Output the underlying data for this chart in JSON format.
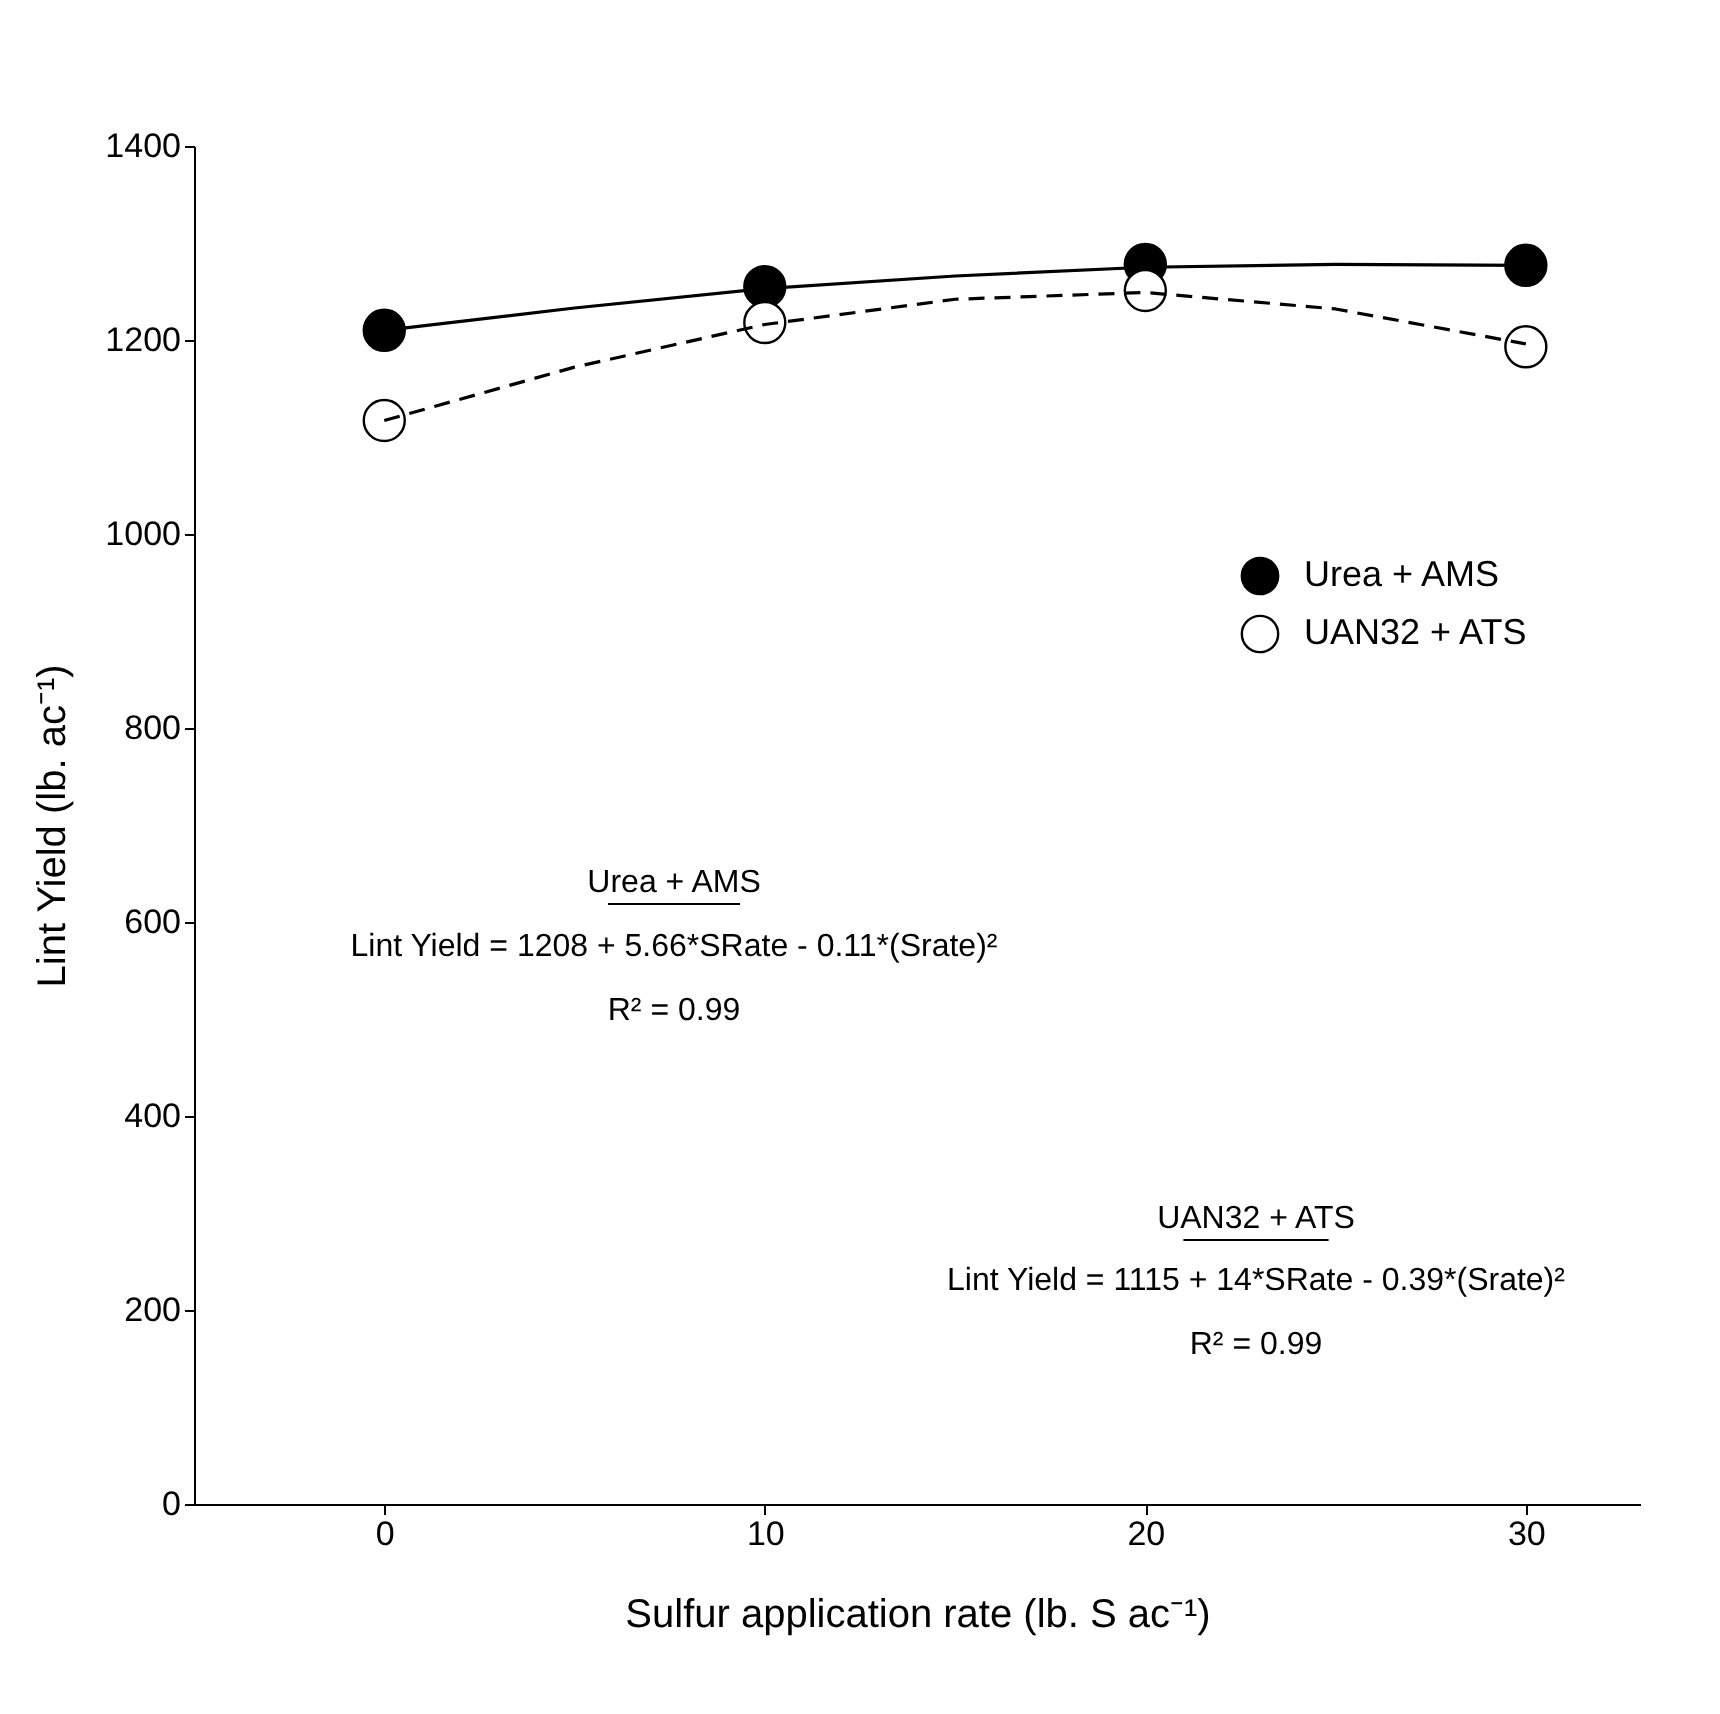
{
  "chart_data": {
    "type": "scatter",
    "xlabel": "Sulfur application rate (lb. S ac⁻¹)",
    "ylabel": "Lint Yield (lb. ac⁻¹)",
    "x": [
      0,
      10,
      20,
      30
    ],
    "xlim": [
      -5,
      33
    ],
    "xticks": [
      0,
      10,
      20,
      30
    ],
    "ylim": [
      0,
      1400
    ],
    "yticks": [
      0,
      200,
      400,
      600,
      800,
      1000,
      1200,
      1400
    ],
    "grid": false,
    "legend": "right",
    "series": [
      {
        "name": "Urea + AMS",
        "color": "#000000",
        "marker": "circle",
        "values": [
          1210,
          1255,
          1278,
          1277
        ]
      },
      {
        "name": "UAN32 + ATS",
        "color": "#ffffff",
        "marker": "circle",
        "values": [
          1117,
          1218,
          1251,
          1193
        ]
      },
      {
        "type": "line",
        "color": "#000000",
        "line_style": "solid",
        "x": [
          0,
          5,
          10,
          15,
          20,
          25,
          30
        ],
        "values": [
          1210,
          1233,
          1253,
          1266,
          1275,
          1278,
          1277
        ]
      },
      {
        "type": "line",
        "color": "#000000",
        "line_style": "dashed",
        "x": [
          0,
          5,
          10,
          15,
          20,
          25,
          30
        ],
        "values": [
          1117,
          1172,
          1216,
          1242,
          1249,
          1232,
          1196
        ]
      }
    ],
    "annotations": [
      "Urea + AMS",
      "Lint Yield = 1208 + 5.66*SRate - 0.11*(Srate)²",
      "R² = 0.99",
      "UAN32 + ATS",
      "Lint Yield = 1115 + 14*SRate - 0.39*(Srate)²",
      "R² = 0.99"
    ]
  }
}
